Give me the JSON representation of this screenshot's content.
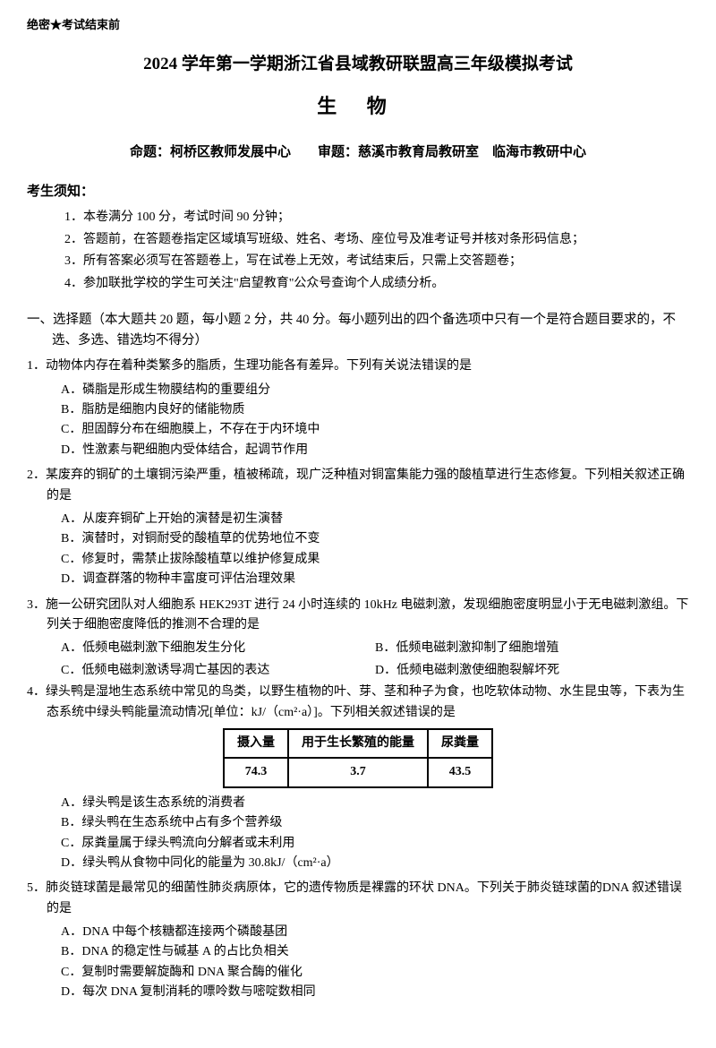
{
  "stamp": "绝密★考试结束前",
  "main_title": "2024 学年第一学期浙江省县域教研联盟高三年级模拟考试",
  "subject": "生 物",
  "credits": "命题：柯桥区教师发展中心　　审题：慈溪市教育局教研室　临海市教研中心",
  "notice_header": "考生须知：",
  "notices": [
    "1．本卷满分 100 分，考试时间 90 分钟；",
    "2．答题前，在答题卷指定区域填写班级、姓名、考场、座位号及准考证号并核对条形码信息；",
    "3．所有答案必须写在答题卷上，写在试卷上无效，考试结束后，只需上交答题卷；",
    "4．参加联批学校的学生可关注\"启望教育\"公众号查询个人成绩分析。"
  ],
  "section_header": "一、选择题（本大题共 20 题，每小题 2 分，共 40 分。每小题列出的四个备选项中只有一个是符合题目要求的，不选、多选、错选均不得分）",
  "q1": {
    "text": "1．动物体内存在着种类繁多的脂质，生理功能各有差异。下列有关说法错误的是",
    "options": [
      "A．磷脂是形成生物膜结构的重要组分",
      "B．脂肪是细胞内良好的储能物质",
      "C．胆固醇分布在细胞膜上，不存在于内环境中",
      "D．性激素与靶细胞内受体结合，起调节作用"
    ]
  },
  "q2": {
    "text": "2．某废弃的铜矿的土壤铜污染严重，植被稀疏，现广泛种植对铜富集能力强的酸植草进行生态修复。下列相关叙述正确的是",
    "options": [
      "A．从废弃铜矿上开始的演替是初生演替",
      "B．演替时，对铜耐受的酸植草的优势地位不变",
      "C．修复时，需禁止拔除酸植草以维护修复成果",
      "D．调查群落的物种丰富度可评估治理效果"
    ]
  },
  "q3": {
    "text": "3．施一公研究团队对人细胞系 HEK293T 进行 24 小时连续的 10kHz 电磁刺激，发现细胞密度明显小于无电磁刺激组。下列关于细胞密度降低的推测不合理的是",
    "options_ab": [
      "A．低频电磁刺激下细胞发生分化",
      "B．低频电磁刺激抑制了细胞增殖"
    ],
    "options_cd": [
      "C．低频电磁刺激诱导凋亡基因的表达",
      "D．低频电磁刺激使细胞裂解坏死"
    ]
  },
  "q4": {
    "text": "4．绿头鸭是湿地生态系统中常见的鸟类，以野生植物的叶、芽、茎和种子为食，也吃软体动物、水生昆虫等，下表为生态系统中绿头鸭能量流动情况[单位：kJ/（cm²·a）]。下列相关叙述错误的是",
    "table": {
      "headers": [
        "摄入量",
        "用于生长繁殖的能量",
        "尿粪量"
      ],
      "values": [
        "74.3",
        "3.7",
        "43.5"
      ]
    },
    "options": [
      "A．绿头鸭是该生态系统的消费者",
      "B．绿头鸭在生态系统中占有多个营养级",
      "C．尿粪量属于绿头鸭流向分解者或未利用",
      "D．绿头鸭从食物中同化的能量为 30.8kJ/（cm²·a）"
    ]
  },
  "q5": {
    "text": "5．肺炎链球菌是最常见的细菌性肺炎病原体，它的遗传物质是裸露的环状 DNA。下列关于肺炎链球菌的DNA 叙述错误的是",
    "options": [
      "A．DNA 中每个核糖都连接两个磷酸基团",
      "B．DNA 的稳定性与碱基 A 的占比负相关",
      "C．复制时需要解旋酶和 DNA 聚合酶的催化",
      "D．每次 DNA 复制消耗的嘌呤数与嘧啶数相同"
    ]
  }
}
